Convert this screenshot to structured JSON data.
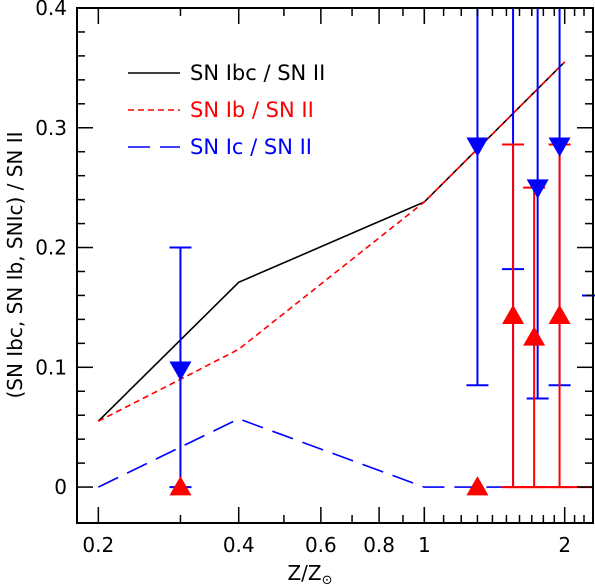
{
  "chart_data": {
    "type": "line",
    "xlabel": "Z/Z",
    "xlabel_sub": "⊙",
    "ylabel": "(SN Ibc, SN Ib, SNIc) / SN II",
    "x_scale": "log",
    "xlim": [
      0.18,
      2.3
    ],
    "ylim": [
      -0.03,
      0.4
    ],
    "x_ticks": [
      {
        "value": 0.2,
        "label": "0.2"
      },
      {
        "value": 0.4,
        "label": "0.4"
      },
      {
        "value": 0.6,
        "label": "0.6"
      },
      {
        "value": 0.8,
        "label": "0.8"
      },
      {
        "value": 1,
        "label": "1"
      },
      {
        "value": 2,
        "label": "2"
      }
    ],
    "y_ticks": [
      {
        "value": 0,
        "label": "0"
      },
      {
        "value": 0.1,
        "label": "0.1"
      },
      {
        "value": 0.2,
        "label": "0.2"
      },
      {
        "value": 0.3,
        "label": "0.3"
      },
      {
        "value": 0.4,
        "label": "0.4"
      }
    ],
    "grid": false,
    "legend_position": "top-left",
    "series": [
      {
        "name": "SN Ibc / SN II",
        "color": "#000000",
        "dash": "solid",
        "x": [
          0.2,
          0.4,
          1.0,
          2.0
        ],
        "y": [
          0.055,
          0.171,
          0.238,
          0.355
        ]
      },
      {
        "name": "SN Ib / SN II",
        "color": "#ff0000",
        "dash": "short-dash",
        "x": [
          0.2,
          0.3,
          0.4,
          1.0,
          2.0
        ],
        "y": [
          0.055,
          0.09,
          0.115,
          0.238,
          0.355
        ]
      },
      {
        "name": "SN Ic / SN II",
        "color": "#0000ff",
        "dash": "long-dash",
        "x": [
          0.2,
          0.4,
          1.0,
          2.0
        ],
        "y": [
          0.0,
          0.057,
          0.0,
          0.0
        ]
      }
    ],
    "observations": [
      {
        "group": "SN Ic",
        "color": "#0000ff",
        "marker": "triangle-down",
        "points": [
          {
            "x": 0.3,
            "y": 0.098,
            "low": 0.0,
            "high": 0.2
          },
          {
            "x": 1.3,
            "y": 0.285,
            "low": 0.085,
            "high": 0.4
          },
          {
            "x": 1.75,
            "y": 0.25,
            "low": 0.074,
            "high": 0.4
          },
          {
            "x": 1.95,
            "y": 0.285,
            "low": 0.085,
            "high": 0.4
          }
        ]
      },
      {
        "group": "SN Ib",
        "color": "#ff0000",
        "marker": "triangle-up",
        "points": [
          {
            "x": 0.3,
            "y": 0.0,
            "low": 0.0,
            "high": 0.0
          },
          {
            "x": 1.3,
            "y": 0.0,
            "low": 0.0,
            "high": 0.0
          },
          {
            "x": 1.55,
            "y": 0.143,
            "low": 0.0,
            "high": 0.286
          },
          {
            "x": 1.72,
            "y": 0.125,
            "low": 0.0,
            "high": 0.25
          },
          {
            "x": 1.95,
            "y": 0.143,
            "low": 0.0,
            "high": 0.286
          }
        ]
      }
    ],
    "extra_blue_bars": [
      {
        "x": 1.55,
        "low": 0.0,
        "high": 0.4,
        "cap_y": 0.182
      },
      {
        "x": 2.3,
        "low": 0.0,
        "high": 0.16,
        "cap_y": 0.16
      }
    ]
  }
}
